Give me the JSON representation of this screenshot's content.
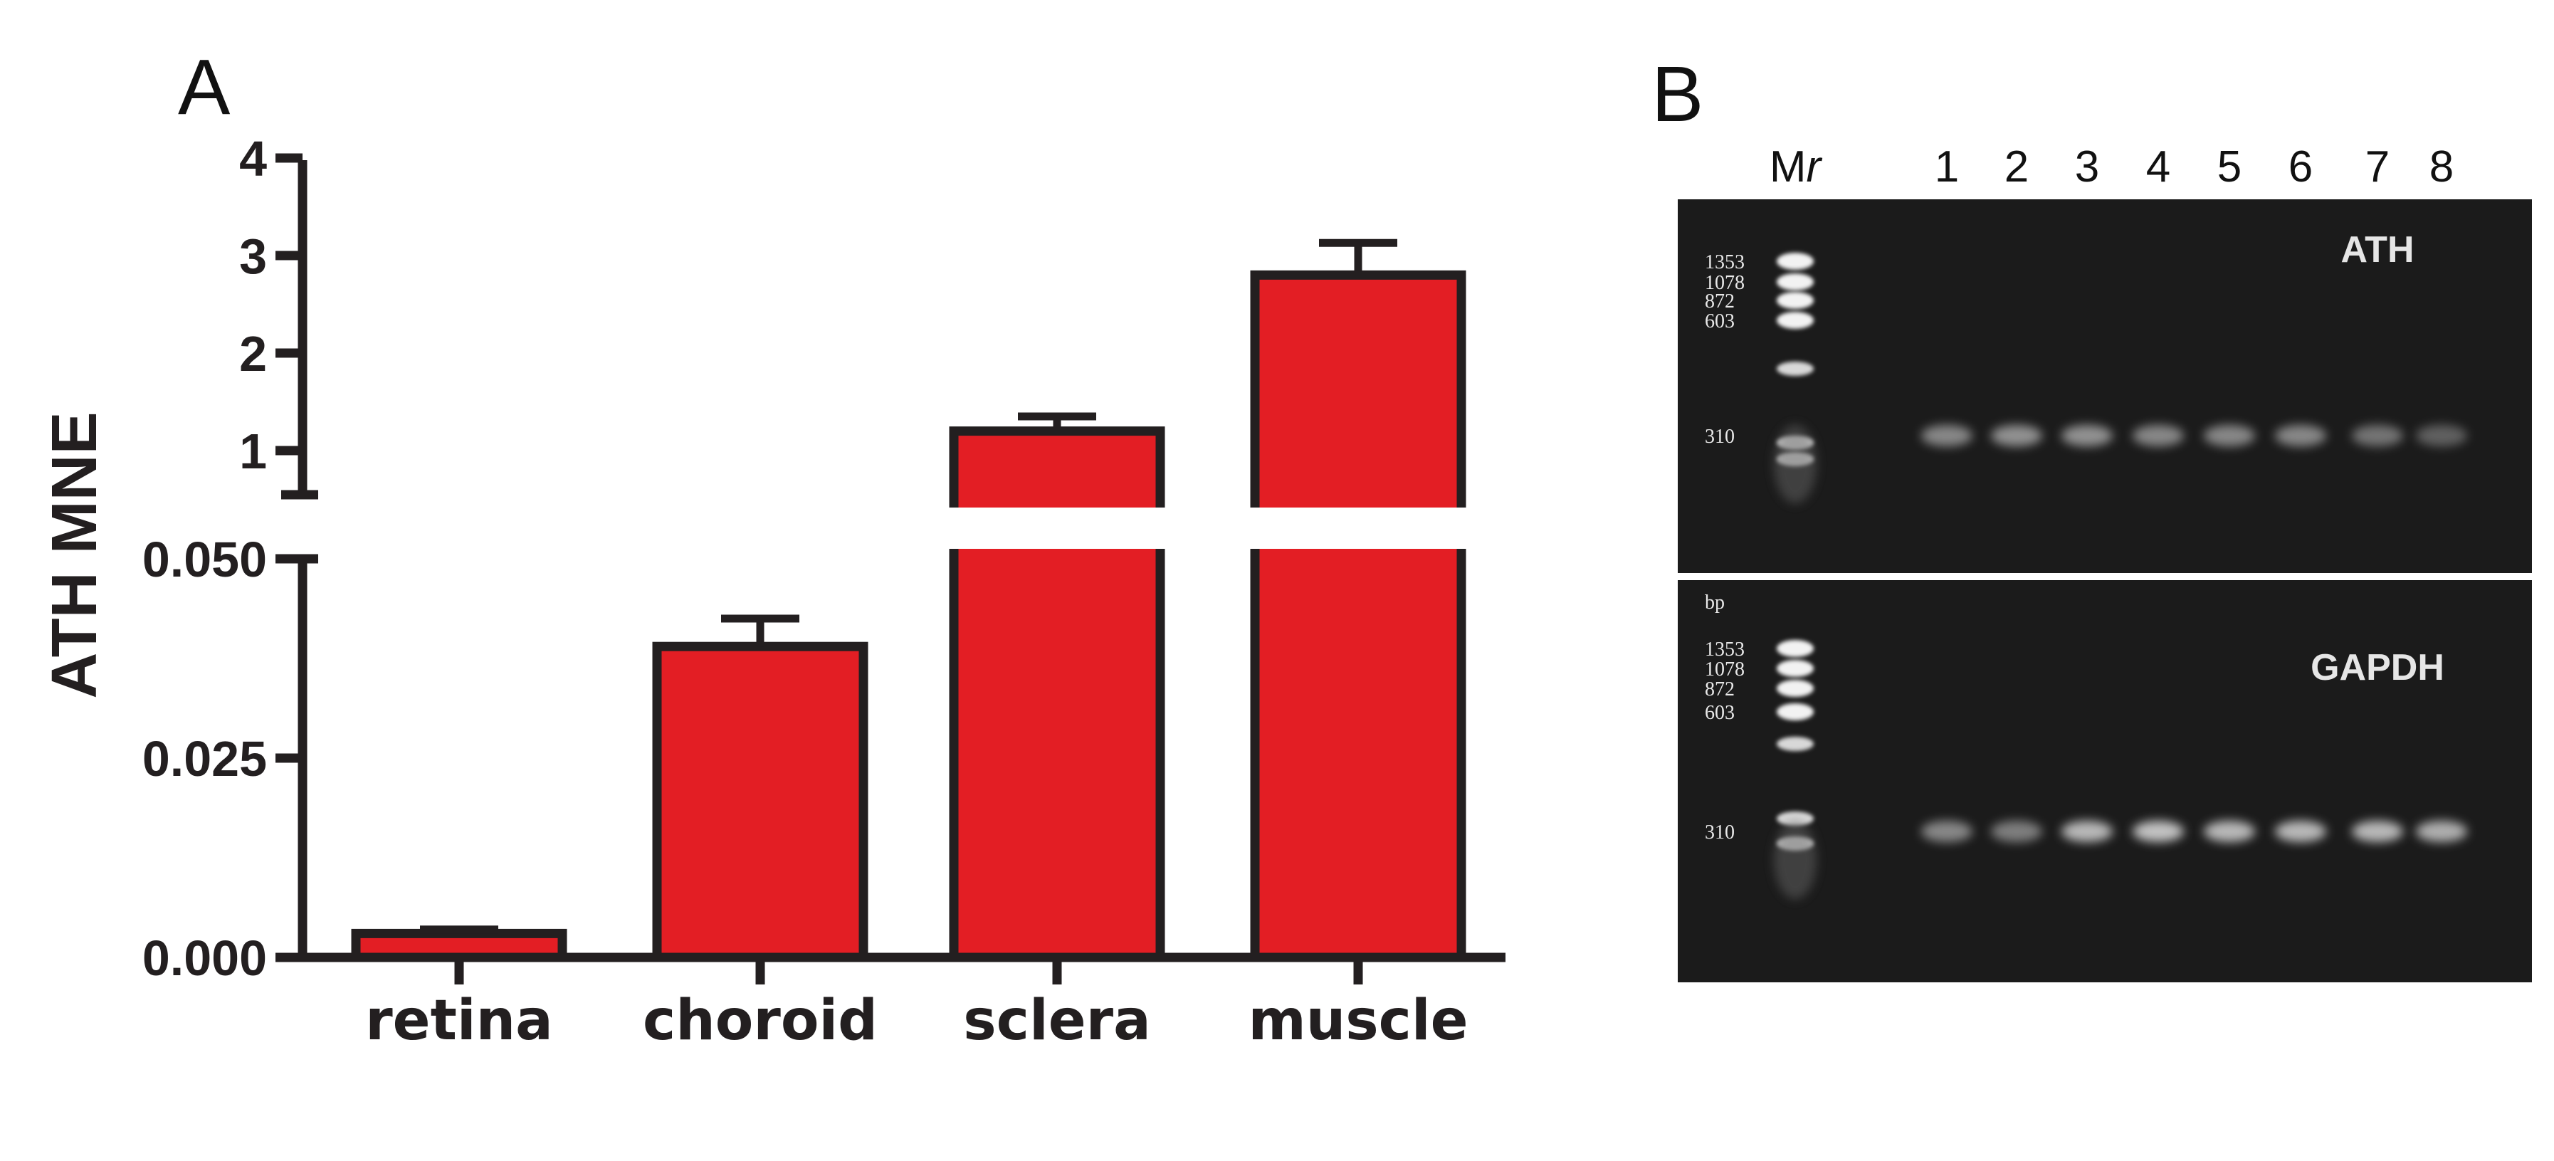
{
  "panels": {
    "a_letter": "A",
    "b_letter": "B"
  },
  "chart_data": {
    "type": "bar",
    "ylabel": "ATH MNE",
    "categories": [
      "retina",
      "choroid",
      "sclera",
      "muscle"
    ],
    "values": [
      0.003,
      0.039,
      1.2,
      2.8
    ],
    "errors": [
      0.0005,
      0.0035,
      0.15,
      0.33
    ],
    "axis_break": true,
    "lower_segment": {
      "ylim": [
        0,
        0.05
      ],
      "ticks": [
        0,
        0.025,
        0.05
      ],
      "tick_labels": [
        "0.000",
        "0.025",
        "0.050"
      ]
    },
    "upper_segment": {
      "ylim": [
        0.5,
        4
      ],
      "ticks": [
        1,
        2,
        3,
        4
      ],
      "tick_labels": [
        "1",
        "2",
        "3",
        "4"
      ]
    },
    "bar_color": "#e31e24",
    "edge_color": "#231f20",
    "grid": false
  },
  "gel": {
    "marker_name_prefix": "M",
    "marker_name_suffix": "r",
    "lanes": [
      "1",
      "2",
      "3",
      "4",
      "5",
      "6",
      "7",
      "8"
    ],
    "top": {
      "title": "ATH",
      "markers": [
        "1353",
        "1078",
        "872",
        "603",
        "310"
      ],
      "intensities": [
        0.55,
        0.6,
        0.6,
        0.55,
        0.55,
        0.55,
        0.45,
        0.35
      ]
    },
    "bottom": {
      "title": "GAPDH",
      "unit": "bp",
      "markers": [
        "1353",
        "1078",
        "872",
        "603",
        "310"
      ],
      "intensities": [
        0.55,
        0.5,
        0.8,
        0.85,
        0.8,
        0.8,
        0.8,
        0.75
      ]
    },
    "background_color": "#1b1b1b",
    "band_color": "#e0e0e0"
  }
}
